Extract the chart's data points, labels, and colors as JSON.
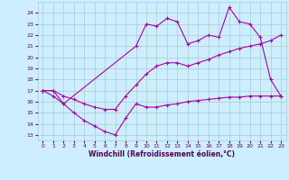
{
  "xlabel": "Windchill (Refroidissement éolien,°C)",
  "background_color": "#cceeff",
  "grid_color": "#aacccc",
  "line_color": "#aa00aa",
  "xlim": [
    -0.5,
    23.5
  ],
  "ylim": [
    12.5,
    25.0
  ],
  "yticks": [
    13,
    14,
    15,
    16,
    17,
    18,
    19,
    20,
    21,
    22,
    23,
    24
  ],
  "xticks": [
    0,
    1,
    2,
    3,
    4,
    5,
    6,
    7,
    8,
    9,
    10,
    11,
    12,
    13,
    14,
    15,
    16,
    17,
    18,
    19,
    20,
    21,
    22,
    23
  ],
  "line1_x": [
    0,
    1,
    2,
    3,
    4,
    5,
    6,
    7,
    8,
    9,
    10,
    11,
    12,
    13,
    14,
    15,
    16,
    17,
    18,
    19,
    20,
    21,
    22,
    23
  ],
  "line1_y": [
    17.0,
    16.5,
    15.8,
    15.0,
    14.3,
    13.8,
    13.3,
    13.0,
    14.5,
    15.8,
    15.5,
    15.5,
    15.7,
    15.8,
    16.0,
    16.1,
    16.2,
    16.3,
    16.4,
    16.4,
    16.5,
    16.5,
    16.5,
    16.5
  ],
  "line2_x": [
    0,
    1,
    2,
    3,
    4,
    5,
    6,
    7,
    8,
    9,
    10,
    11,
    12,
    13,
    14,
    15,
    16,
    17,
    18,
    19,
    20,
    21,
    22,
    23
  ],
  "line2_y": [
    17.0,
    17.0,
    16.5,
    16.2,
    15.8,
    15.5,
    15.3,
    15.3,
    16.5,
    17.5,
    18.5,
    19.2,
    19.5,
    19.5,
    19.2,
    19.5,
    19.8,
    20.2,
    20.5,
    20.8,
    21.0,
    21.2,
    21.5,
    22.0
  ],
  "line3_x": [
    0,
    1,
    2,
    9,
    10,
    11,
    12,
    13,
    14,
    15,
    16,
    17,
    18,
    19,
    20,
    21,
    22,
    23
  ],
  "line3_y": [
    17.0,
    17.0,
    15.8,
    21.0,
    23.0,
    22.8,
    23.5,
    23.2,
    21.2,
    21.5,
    22.0,
    21.8,
    24.5,
    23.2,
    23.0,
    21.8,
    18.0,
    16.5
  ]
}
